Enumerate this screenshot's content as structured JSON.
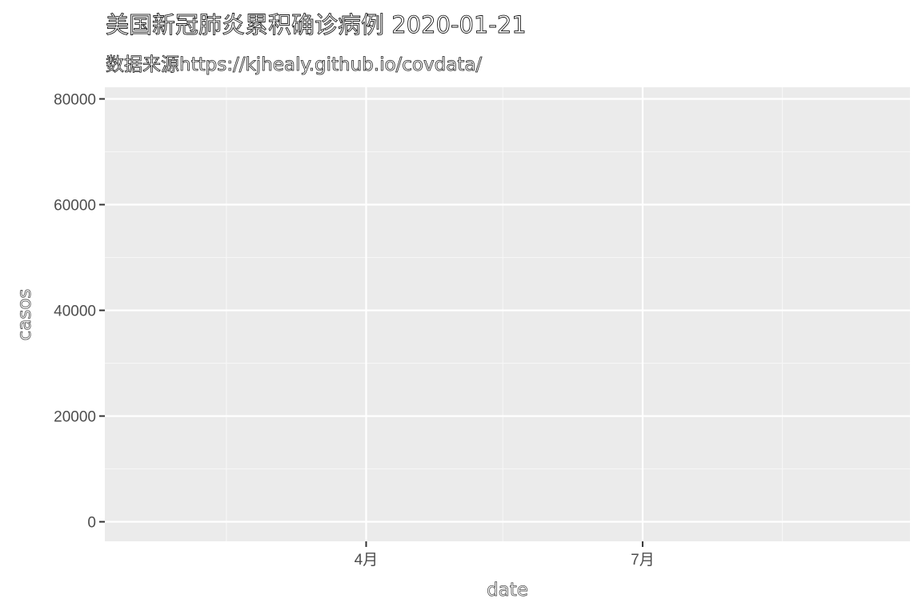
{
  "chart_data": {
    "type": "line",
    "title": "美国新冠肺炎累积确诊病例 2020-01-21",
    "subtitle": "数据来源https://kjhealy.github.io/covdata/",
    "xlabel": "date",
    "ylabel": "casos",
    "x_ticks": [
      {
        "label": "4月",
        "date": "2020-04-01"
      },
      {
        "label": "7月",
        "date": "2020-07-01"
      }
    ],
    "x_minor_dates": [
      "2020-02-15",
      "2020-05-16",
      "2020-08-16"
    ],
    "xlim": [
      "2020-01-06",
      "2020-09-27"
    ],
    "y_ticks": [
      0,
      20000,
      40000,
      60000,
      80000
    ],
    "ylim": [
      -3700,
      82200
    ],
    "series": [],
    "grid": true,
    "colors": {
      "panel_background": "#ebebeb",
      "grid_major": "#ffffff",
      "grid_minor": "#f6f6f6",
      "tick_text": "#4d4d4d",
      "tick_mark": "#333333"
    }
  }
}
